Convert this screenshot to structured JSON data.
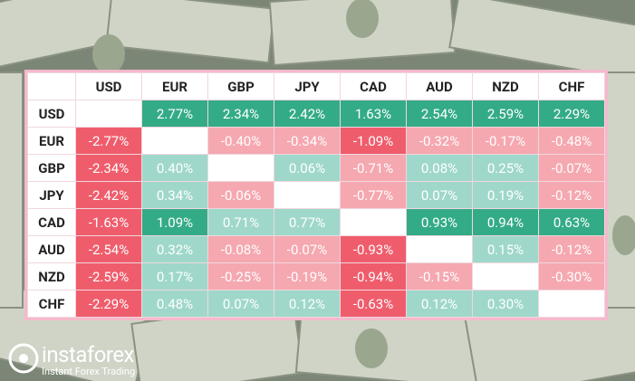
{
  "table": {
    "columns": [
      "USD",
      "EUR",
      "GBP",
      "JPY",
      "CAD",
      "AUD",
      "NZD",
      "CHF"
    ],
    "rows": [
      {
        "label": "USD",
        "cells": [
          null,
          "2.77%",
          "2.34%",
          "2.42%",
          "1.63%",
          "2.54%",
          "2.59%",
          "2.29%"
        ],
        "colors": [
          null,
          "#34ab87",
          "#34ab87",
          "#34ab87",
          "#34ab87",
          "#34ab87",
          "#34ab87",
          "#34ab87"
        ]
      },
      {
        "label": "EUR",
        "cells": [
          "-2.77%",
          null,
          "-0.40%",
          "-0.34%",
          "-1.09%",
          "-0.32%",
          "-0.17%",
          "-0.48%"
        ],
        "colors": [
          "#ef5d6c",
          null,
          "#f5a8b0",
          "#f5a8b0",
          "#ef5d6c",
          "#f5a8b0",
          "#f5a8b0",
          "#f5a8b0"
        ]
      },
      {
        "label": "GBP",
        "cells": [
          "-2.34%",
          "0.40%",
          null,
          "0.06%",
          "-0.71%",
          "0.08%",
          "0.25%",
          "-0.07%"
        ],
        "colors": [
          "#ef5d6c",
          "#9fd8ca",
          null,
          "#9fd8ca",
          "#f5a8b0",
          "#9fd8ca",
          "#9fd8ca",
          "#f5a8b0"
        ]
      },
      {
        "label": "JPY",
        "cells": [
          "-2.42%",
          "0.34%",
          "-0.06%",
          null,
          "-0.77%",
          "0.07%",
          "0.19%",
          "-0.12%"
        ],
        "colors": [
          "#ef5d6c",
          "#9fd8ca",
          "#f5a8b0",
          null,
          "#f5a8b0",
          "#9fd8ca",
          "#9fd8ca",
          "#f5a8b0"
        ]
      },
      {
        "label": "CAD",
        "cells": [
          "-1.63%",
          "1.09%",
          "0.71%",
          "0.77%",
          null,
          "0.93%",
          "0.94%",
          "0.63%"
        ],
        "colors": [
          "#ef5d6c",
          "#34ab87",
          "#9fd8ca",
          "#9fd8ca",
          null,
          "#34ab87",
          "#34ab87",
          "#34ab87"
        ]
      },
      {
        "label": "AUD",
        "cells": [
          "-2.54%",
          "0.32%",
          "-0.08%",
          "-0.07%",
          "-0.93%",
          null,
          "0.15%",
          "-0.12%"
        ],
        "colors": [
          "#ef5d6c",
          "#9fd8ca",
          "#f5a8b0",
          "#f5a8b0",
          "#ef5d6c",
          null,
          "#9fd8ca",
          "#f5a8b0"
        ]
      },
      {
        "label": "NZD",
        "cells": [
          "-2.59%",
          "0.17%",
          "-0.25%",
          "-0.19%",
          "-0.94%",
          "-0.15%",
          null,
          "-0.30%"
        ],
        "colors": [
          "#ef5d6c",
          "#9fd8ca",
          "#f5a8b0",
          "#f5a8b0",
          "#ef5d6c",
          "#f5a8b0",
          null,
          "#f5a8b0"
        ]
      },
      {
        "label": "CHF",
        "cells": [
          "-2.29%",
          "0.48%",
          "0.07%",
          "0.12%",
          "-0.63%",
          "0.12%",
          "0.30%",
          null
        ],
        "colors": [
          "#ef5d6c",
          "#9fd8ca",
          "#9fd8ca",
          "#9fd8ca",
          "#ef5d6c",
          "#9fd8ca",
          "#9fd8ca",
          null
        ]
      }
    ]
  },
  "logo": {
    "name": "instaforex",
    "tagline": "Instant Forex Trading"
  }
}
